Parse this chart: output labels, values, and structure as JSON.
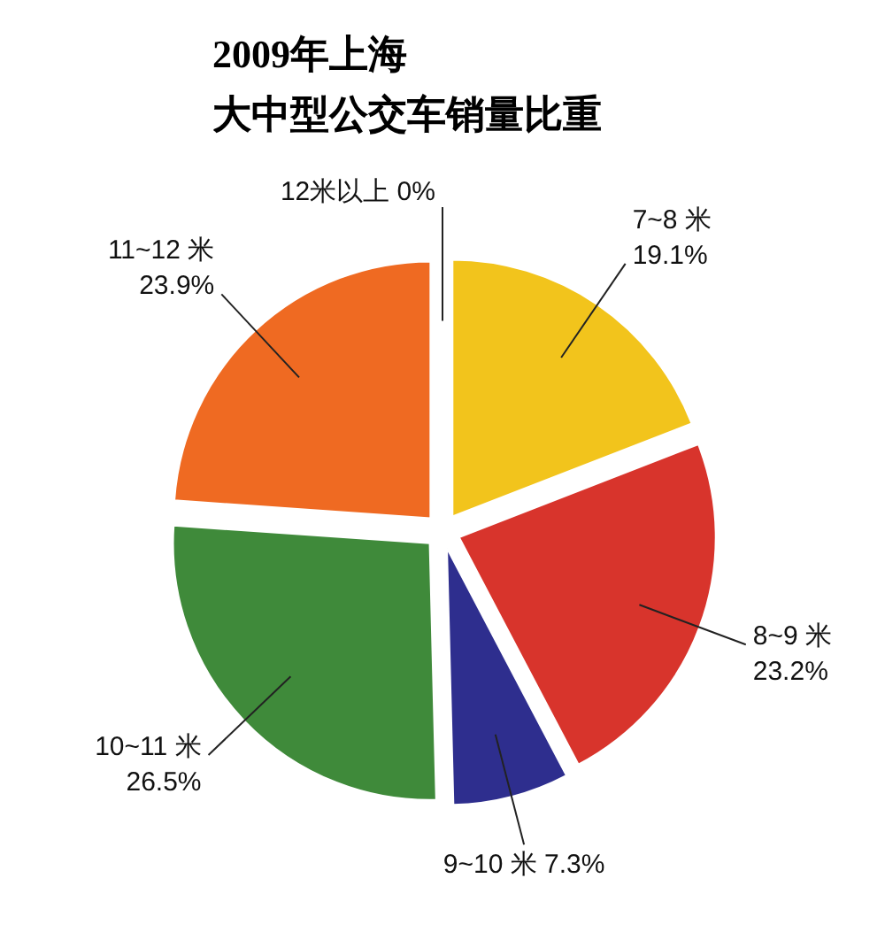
{
  "chart_data": {
    "type": "pie",
    "title": "2009年上海",
    "subtitle": "大中型公交车销量比重",
    "categories": [
      "7~8 米",
      "8~9 米",
      "9~10 米",
      "10~11 米",
      "11~12 米",
      "12米以上"
    ],
    "values": [
      19.1,
      23.2,
      7.3,
      26.5,
      23.9,
      0
    ],
    "value_labels": [
      "19.1%",
      "23.2%",
      "7.3%",
      "26.5%",
      "23.9%",
      "0%"
    ],
    "colors": [
      "#f2c41c",
      "#d8342c",
      "#2e2e8e",
      "#3f8a3a",
      "#ef6a22",
      null
    ]
  }
}
